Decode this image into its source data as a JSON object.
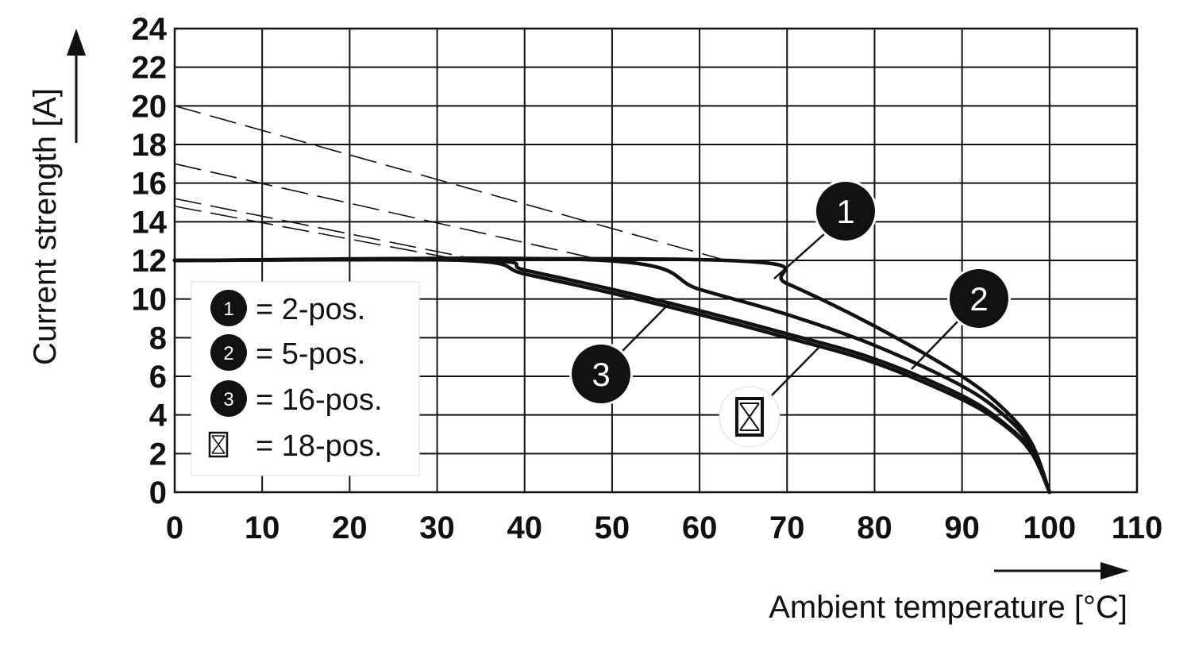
{
  "chart_data": {
    "type": "line",
    "xlabel": "Ambient temperature [°C]",
    "ylabel": "Current strength [A]",
    "xlim": [
      0,
      110
    ],
    "ylim": [
      0,
      24
    ],
    "x_ticks": [
      "0",
      "10",
      "20",
      "30",
      "40",
      "50",
      "60",
      "70",
      "80",
      "90",
      "100",
      "110"
    ],
    "y_ticks": [
      "0",
      "2",
      "4",
      "6",
      "8",
      "10",
      "12",
      "14",
      "16",
      "18",
      "20",
      "22",
      "24"
    ],
    "grid": true,
    "series": [
      {
        "name": "2-pos.",
        "marker_label": "1",
        "x": [
          0,
          63,
          70,
          80,
          90,
          95,
          98,
          100
        ],
        "y": [
          12,
          12,
          10.8,
          8.6,
          6.0,
          4.2,
          2.5,
          0
        ],
        "derating_reference": {
          "x": [
            0,
            63
          ],
          "y": [
            20,
            12
          ]
        }
      },
      {
        "name": "5-pos.",
        "marker_label": "2",
        "x": [
          0,
          49,
          60,
          70,
          80,
          90,
          95,
          98,
          100
        ],
        "y": [
          12,
          12,
          10.5,
          9.2,
          7.6,
          5.5,
          3.9,
          2.3,
          0
        ],
        "derating_reference": {
          "x": [
            0,
            49
          ],
          "y": [
            17,
            12
          ]
        }
      },
      {
        "name": "16-pos.",
        "marker_label": "3",
        "x": [
          0,
          35,
          40,
          50,
          60,
          70,
          80,
          90,
          95,
          98,
          100
        ],
        "y": [
          12,
          12,
          11.5,
          10.5,
          9.4,
          8.2,
          6.9,
          5.0,
          3.5,
          2.1,
          0
        ],
        "derating_reference": {
          "x": [
            0,
            35
          ],
          "y": [
            15.2,
            12
          ]
        }
      },
      {
        "name": "18-pos.",
        "marker_label": "",
        "x": [
          0,
          33,
          40,
          50,
          60,
          70,
          80,
          90,
          95,
          98,
          100
        ],
        "y": [
          12,
          12,
          11.3,
          10.3,
          9.2,
          8.0,
          6.7,
          4.8,
          3.4,
          2.0,
          0
        ],
        "derating_reference": {
          "x": [
            0,
            33
          ],
          "y": [
            14.8,
            12
          ]
        }
      }
    ],
    "legend": {
      "placement": "bottom-left",
      "entries": [
        {
          "marker": "1",
          "text": "= 2-pos."
        },
        {
          "marker": "2",
          "text": "= 5-pos."
        },
        {
          "marker": "3",
          "text": "= 16-pos."
        },
        {
          "marker": "crossed-box-icon",
          "text": "= 18-pos."
        }
      ]
    },
    "colors": {
      "line": "#111111",
      "grid": "#111111",
      "background": "#ffffff"
    }
  }
}
